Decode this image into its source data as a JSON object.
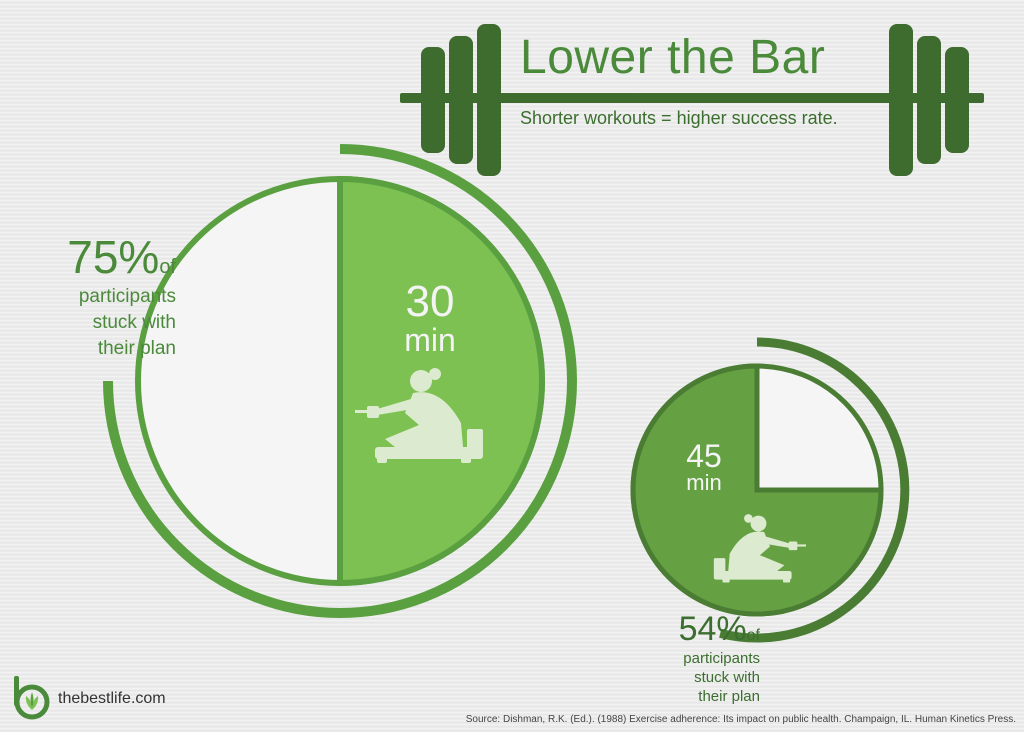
{
  "header": {
    "title": "Lower the Bar",
    "subtitle": "Shorter workouts = higher success rate."
  },
  "chart_data": [
    {
      "type": "pie",
      "duration_label": "30",
      "duration_unit": "min",
      "percent_label": "75%",
      "value": 75,
      "of_label": "of",
      "description_lines": [
        "participants",
        "stuck with",
        "their plan"
      ]
    },
    {
      "type": "pie",
      "duration_label": "45",
      "duration_unit": "min",
      "percent_label": "54%",
      "value": 54,
      "of_label": "of",
      "description_lines": [
        "participants",
        "stuck with",
        "their plan"
      ]
    }
  ],
  "footer": {
    "brand": "thebestlife.com",
    "source": "Source: Dishman, R.K. (Ed.). (1988) Exercise adherence: Its impact on public health. Champaign, IL. Human Kinetics Press."
  },
  "colors": {
    "light_green": "#7cc152",
    "mid_green": "#5aa040",
    "dark_green": "#4a7d33",
    "barbell_green": "#3e6b2e",
    "white_slice": "#f5f5f5",
    "icon_fill": "#dcebcf"
  },
  "icons": [
    "barbell-icon",
    "rowing-machine-icon",
    "bestlife-logo-icon"
  ]
}
